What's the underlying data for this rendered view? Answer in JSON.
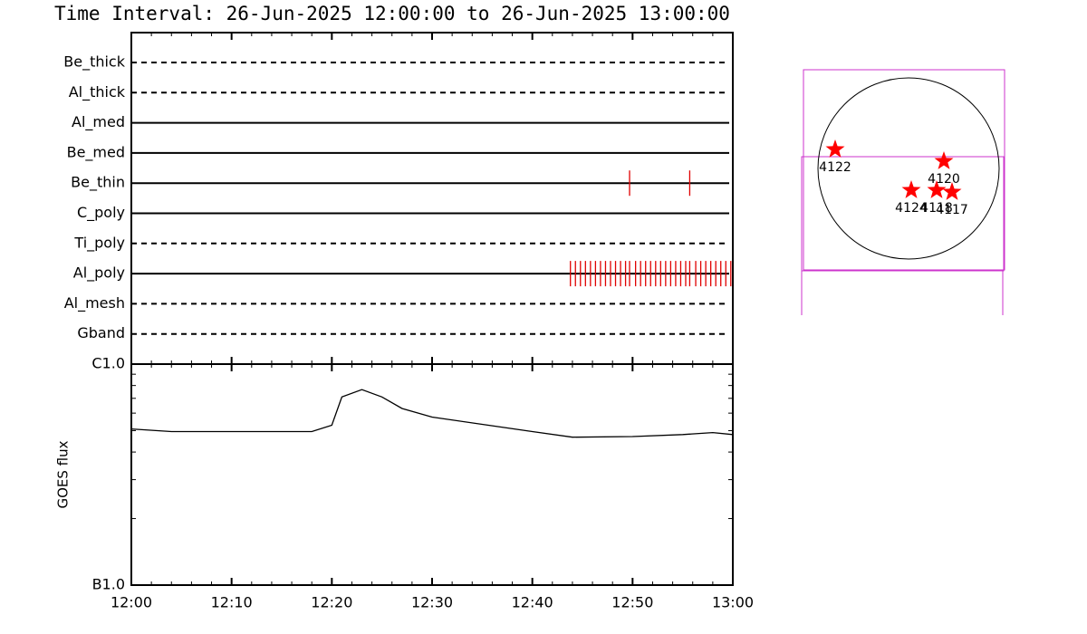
{
  "chart_data": [
    {
      "type": "timeline",
      "title": "Time Interval: 26-Jun-2025 12:00:00 to 26-Jun-2025 13:00:00",
      "categories": [
        "Be_thick",
        "Al_thick",
        "Al_med",
        "Be_med",
        "Be_thin",
        "C_poly",
        "Ti_poly",
        "Al_poly",
        "Al_mesh",
        "Gband"
      ],
      "line_styles": [
        "dashed",
        "dashed",
        "solid",
        "solid",
        "solid",
        "solid",
        "dashed",
        "solid",
        "dashed",
        "dashed"
      ],
      "events": [
        [],
        [],
        [],
        [],
        [
          49.7,
          55.7
        ],
        [],
        [],
        [
          43.8,
          44.3,
          44.8,
          45.3,
          45.8,
          46.3,
          46.8,
          47.3,
          47.8,
          48.3,
          48.8,
          49.3,
          49.7,
          50.3,
          50.8,
          51.3,
          51.8,
          52.3,
          52.8,
          53.3,
          53.8,
          54.3,
          54.8,
          55.3,
          55.7,
          56.3,
          56.8,
          57.3,
          57.8,
          58.3,
          58.8,
          59.3,
          59.8
        ],
        [],
        []
      ],
      "color": "#e00000",
      "xlim": [
        0,
        60
      ]
    },
    {
      "type": "line",
      "ylabel": "GOES flux",
      "x": [
        0,
        4,
        18,
        20,
        21,
        23,
        25,
        27,
        30,
        35,
        40,
        44,
        50,
        55,
        58,
        60
      ],
      "values": [
        5.09e-06,
        4.95e-06,
        4.95e-06,
        5.29e-06,
        7.1e-06,
        7.66e-06,
        7.1e-06,
        6.3e-06,
        5.76e-06,
        5.34e-06,
        4.95e-06,
        4.67e-06,
        4.7e-06,
        4.8e-06,
        4.9e-06,
        4.8e-06
      ],
      "color": "#000000",
      "log_scale": true,
      "xlim": [
        0,
        60
      ],
      "xticks": [
        {
          "value": 0,
          "label": "12:00"
        },
        {
          "value": 10,
          "label": "12:10"
        },
        {
          "value": 20,
          "label": "12:20"
        },
        {
          "value": 30,
          "label": "12:30"
        },
        {
          "value": 40,
          "label": "12:40"
        },
        {
          "value": 50,
          "label": "12:50"
        },
        {
          "value": 60,
          "label": "13:00"
        }
      ],
      "xminorticks": [
        2,
        4,
        6,
        8,
        12,
        14,
        16,
        18,
        22,
        24,
        26,
        28,
        32,
        34,
        36,
        38,
        42,
        44,
        46,
        48,
        52,
        54,
        56,
        58
      ],
      "ylim": [
        1e-06,
        1e-05
      ],
      "yticks": [
        {
          "value": 1e-06,
          "label": "B1.0"
        },
        {
          "value": 1e-05,
          "label": "C1.0"
        }
      ],
      "yminorticks": [
        2e-06,
        3e-06,
        4e-06,
        5e-06,
        6e-06,
        7e-06,
        8e-06,
        9e-06
      ]
    },
    {
      "type": "scatter",
      "labels": [
        "4122",
        "4120",
        "4124",
        "4118",
        "4117"
      ],
      "x": [
        -0.81,
        0.39,
        0.03,
        0.31,
        0.48
      ],
      "values": [
        0.21,
        0.08,
        -0.24,
        -0.24,
        -0.26
      ],
      "color": "#ff0000"
    }
  ]
}
